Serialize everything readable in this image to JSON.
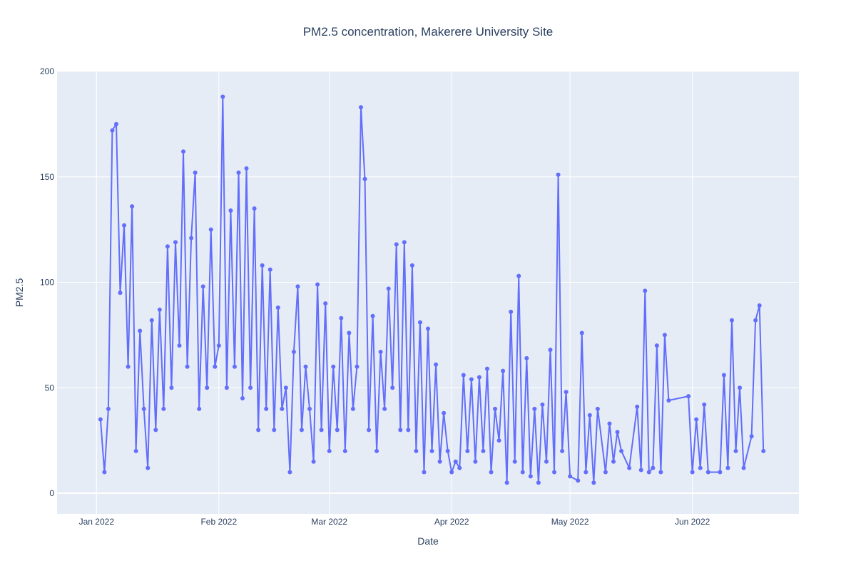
{
  "chart_data": {
    "type": "line",
    "title": "PM2.5 concentration, Makerere University Site",
    "x_label": "Date",
    "y_label": "PM2.5",
    "x": [
      "2022-01-02",
      "2022-01-03",
      "2022-01-04",
      "2022-01-05",
      "2022-01-06",
      "2022-01-07",
      "2022-01-08",
      "2022-01-09",
      "2022-01-10",
      "2022-01-11",
      "2022-01-12",
      "2022-01-13",
      "2022-01-14",
      "2022-01-15",
      "2022-01-16",
      "2022-01-17",
      "2022-01-18",
      "2022-01-19",
      "2022-01-20",
      "2022-01-21",
      "2022-01-22",
      "2022-01-23",
      "2022-01-24",
      "2022-01-25",
      "2022-01-26",
      "2022-01-27",
      "2022-01-28",
      "2022-01-29",
      "2022-01-30",
      "2022-01-31",
      "2022-02-01",
      "2022-02-02",
      "2022-02-03",
      "2022-02-04",
      "2022-02-05",
      "2022-02-06",
      "2022-02-07",
      "2022-02-08",
      "2022-02-09",
      "2022-02-10",
      "2022-02-11",
      "2022-02-12",
      "2022-02-13",
      "2022-02-14",
      "2022-02-15",
      "2022-02-16",
      "2022-02-17",
      "2022-02-18",
      "2022-02-19",
      "2022-02-20",
      "2022-02-21",
      "2022-02-22",
      "2022-02-23",
      "2022-02-24",
      "2022-02-25",
      "2022-02-26",
      "2022-02-27",
      "2022-02-28",
      "2022-03-01",
      "2022-03-02",
      "2022-03-03",
      "2022-03-04",
      "2022-03-05",
      "2022-03-06",
      "2022-03-07",
      "2022-03-08",
      "2022-03-09",
      "2022-03-10",
      "2022-03-11",
      "2022-03-12",
      "2022-03-13",
      "2022-03-14",
      "2022-03-15",
      "2022-03-16",
      "2022-03-17",
      "2022-03-18",
      "2022-03-19",
      "2022-03-20",
      "2022-03-21",
      "2022-03-22",
      "2022-03-23",
      "2022-03-24",
      "2022-03-25",
      "2022-03-26",
      "2022-03-27",
      "2022-03-28",
      "2022-03-29",
      "2022-03-30",
      "2022-03-31",
      "2022-04-01",
      "2022-04-02",
      "2022-04-03",
      "2022-04-04",
      "2022-04-05",
      "2022-04-06",
      "2022-04-07",
      "2022-04-08",
      "2022-04-09",
      "2022-04-10",
      "2022-04-11",
      "2022-04-12",
      "2022-04-13",
      "2022-04-14",
      "2022-04-15",
      "2022-04-16",
      "2022-04-17",
      "2022-04-18",
      "2022-04-19",
      "2022-04-20",
      "2022-04-21",
      "2022-04-22",
      "2022-04-23",
      "2022-04-24",
      "2022-04-25",
      "2022-04-26",
      "2022-04-27",
      "2022-04-28",
      "2022-04-29",
      "2022-04-30",
      "2022-05-01",
      "2022-05-03",
      "2022-05-04",
      "2022-05-05",
      "2022-05-06",
      "2022-05-07",
      "2022-05-08",
      "2022-05-10",
      "2022-05-11",
      "2022-05-12",
      "2022-05-13",
      "2022-05-14",
      "2022-05-16",
      "2022-05-18",
      "2022-05-19",
      "2022-05-20",
      "2022-05-21",
      "2022-05-22",
      "2022-05-23",
      "2022-05-24",
      "2022-05-25",
      "2022-05-26",
      "2022-05-31",
      "2022-06-01",
      "2022-06-02",
      "2022-06-03",
      "2022-06-04",
      "2022-06-05",
      "2022-06-08",
      "2022-06-09",
      "2022-06-10",
      "2022-06-11",
      "2022-06-12",
      "2022-06-13",
      "2022-06-14",
      "2022-06-16",
      "2022-06-17",
      "2022-06-18",
      "2022-06-19"
    ],
    "series": [
      {
        "name": "PM2.5",
        "color": "#636efa",
        "values": [
          35,
          10,
          40,
          172,
          175,
          95,
          127,
          60,
          136,
          20,
          77,
          40,
          12,
          82,
          30,
          87,
          40,
          117,
          50,
          119,
          70,
          162,
          60,
          121,
          152,
          40,
          98,
          50,
          125,
          60,
          70,
          188,
          50,
          134,
          60,
          152,
          45,
          154,
          50,
          135,
          30,
          108,
          40,
          106,
          30,
          88,
          40,
          50,
          10,
          67,
          98,
          30,
          60,
          40,
          15,
          99,
          30,
          90,
          20,
          60,
          30,
          83,
          20,
          76,
          40,
          60,
          183,
          149,
          30,
          84,
          20,
          67,
          40,
          97,
          50,
          118,
          30,
          119,
          30,
          108,
          20,
          81,
          10,
          78,
          20,
          61,
          15,
          38,
          20,
          10,
          15,
          12,
          56,
          20,
          54,
          15,
          55,
          20,
          59,
          10,
          40,
          25,
          58,
          5,
          86,
          15,
          103,
          10,
          64,
          8,
          40,
          5,
          42,
          15,
          68,
          10,
          151,
          20,
          48,
          8,
          6,
          76,
          10,
          37,
          5,
          40,
          10,
          33,
          15,
          29,
          20,
          12,
          41,
          11,
          96,
          10,
          12,
          70,
          10,
          75,
          44,
          46,
          10,
          35,
          12,
          42,
          10,
          10,
          56,
          12,
          82,
          20,
          50,
          12,
          27,
          82,
          89,
          20
        ]
      }
    ],
    "xlim": [
      "2021-12-22",
      "2022-06-28"
    ],
    "xticks": [
      {
        "value": "2022-01-01",
        "label": "Jan 2022"
      },
      {
        "value": "2022-02-01",
        "label": "Feb 2022"
      },
      {
        "value": "2022-03-01",
        "label": "Mar 2022"
      },
      {
        "value": "2022-04-01",
        "label": "Apr 2022"
      },
      {
        "value": "2022-05-01",
        "label": "May 2022"
      },
      {
        "value": "2022-06-01",
        "label": "Jun 2022"
      }
    ],
    "ylim": [
      -9.8,
      200
    ],
    "yticks": [
      0,
      50,
      100,
      150,
      200
    ],
    "grid": true
  }
}
